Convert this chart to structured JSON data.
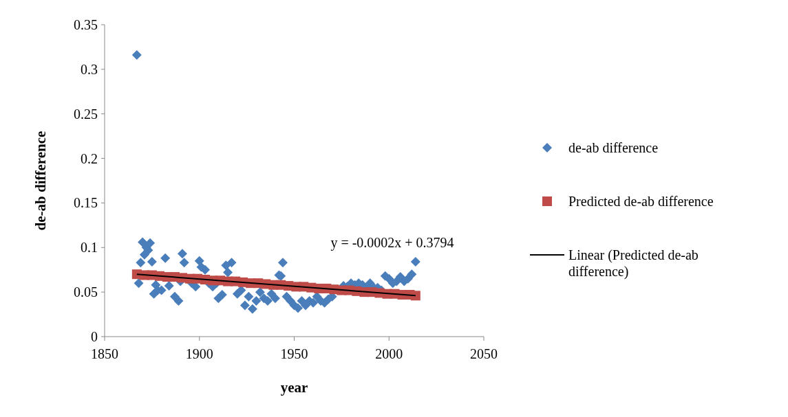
{
  "chart_data": {
    "type": "scatter",
    "xlabel": "year",
    "ylabel": "de-ab difference",
    "xlim": [
      1850,
      2050
    ],
    "xticks": [
      1850,
      1900,
      1950,
      2000,
      2050
    ],
    "ylim": [
      0,
      0.35
    ],
    "yticks": [
      0,
      {
        "value": 0.05,
        "label": "0.05"
      },
      {
        "value": 0.1,
        "label": "0.1"
      },
      {
        "value": 0.15,
        "label": "0.15"
      },
      {
        "value": 0.2,
        "label": "0.2"
      },
      {
        "value": 0.25,
        "label": "0.25"
      },
      {
        "value": 0.3,
        "label": "0.3"
      },
      {
        "value": 0.35,
        "label": "0.35"
      }
    ],
    "grid": false,
    "legend": "right",
    "annotations": [
      "y = -0.0002x + 0.3794"
    ],
    "series": [
      {
        "name": "de-ab difference",
        "marker": "diamond",
        "color": "#4a7ebb",
        "x": [
          1867,
          1868,
          1869,
          1870,
          1871,
          1872,
          1873,
          1874,
          1875,
          1876,
          1877,
          1878,
          1880,
          1882,
          1884,
          1887,
          1889,
          1890,
          1891,
          1892,
          1896,
          1898,
          1900,
          1901,
          1903,
          1905,
          1907,
          1909,
          1910,
          1912,
          1914,
          1915,
          1917,
          1920,
          1922,
          1924,
          1926,
          1928,
          1930,
          1932,
          1934,
          1936,
          1938,
          1940,
          1942,
          1943,
          1944,
          1946,
          1948,
          1950,
          1952,
          1954,
          1956,
          1958,
          1960,
          1962,
          1964,
          1966,
          1968,
          1970,
          1976,
          1978,
          1980,
          1982,
          1984,
          1986,
          1988,
          1990,
          1992,
          1994,
          1996,
          1998,
          2000,
          2002,
          2004,
          2006,
          2008,
          2010,
          2012,
          2014
        ],
        "values": [
          0.316,
          0.06,
          0.083,
          0.106,
          0.092,
          0.1,
          0.097,
          0.105,
          0.084,
          0.048,
          0.058,
          0.052,
          0.052,
          0.088,
          0.057,
          0.045,
          0.04,
          0.062,
          0.093,
          0.083,
          0.06,
          0.056,
          0.085,
          0.078,
          0.075,
          0.06,
          0.056,
          0.06,
          0.043,
          0.047,
          0.08,
          0.072,
          0.083,
          0.048,
          0.052,
          0.035,
          0.045,
          0.031,
          0.04,
          0.05,
          0.043,
          0.04,
          0.048,
          0.043,
          0.069,
          0.068,
          0.083,
          0.045,
          0.04,
          0.035,
          0.032,
          0.04,
          0.035,
          0.04,
          0.038,
          0.045,
          0.04,
          0.038,
          0.042,
          0.045,
          0.057,
          0.056,
          0.06,
          0.058,
          0.06,
          0.058,
          0.055,
          0.06,
          0.055,
          0.055,
          0.052,
          0.068,
          0.065,
          0.06,
          0.062,
          0.067,
          0.062,
          0.065,
          0.07,
          0.084
        ]
      },
      {
        "name": "Predicted de-ab difference",
        "marker": "square",
        "color": "#be4b48",
        "x": [
          1867,
          1871,
          1875,
          1879,
          1883,
          1887,
          1891,
          1895,
          1899,
          1903,
          1907,
          1911,
          1915,
          1919,
          1923,
          1927,
          1931,
          1935,
          1939,
          1943,
          1947,
          1951,
          1955,
          1959,
          1963,
          1967,
          1971,
          1975,
          1979,
          1983,
          1987,
          1991,
          1995,
          1999,
          2003,
          2007,
          2011,
          2014
        ],
        "values": [
          0.07,
          0.069,
          0.069,
          0.068,
          0.067,
          0.067,
          0.066,
          0.065,
          0.065,
          0.064,
          0.063,
          0.063,
          0.062,
          0.062,
          0.061,
          0.06,
          0.06,
          0.059,
          0.058,
          0.058,
          0.057,
          0.056,
          0.056,
          0.055,
          0.054,
          0.054,
          0.053,
          0.052,
          0.052,
          0.051,
          0.05,
          0.05,
          0.049,
          0.048,
          0.048,
          0.047,
          0.047,
          0.046
        ]
      },
      {
        "name": "Linear (Predicted de-ab difference)",
        "type": "line",
        "line_style": "solid",
        "color": "#000000",
        "x": [
          1867,
          2014
        ],
        "values": [
          0.07,
          0.046
        ]
      }
    ]
  }
}
